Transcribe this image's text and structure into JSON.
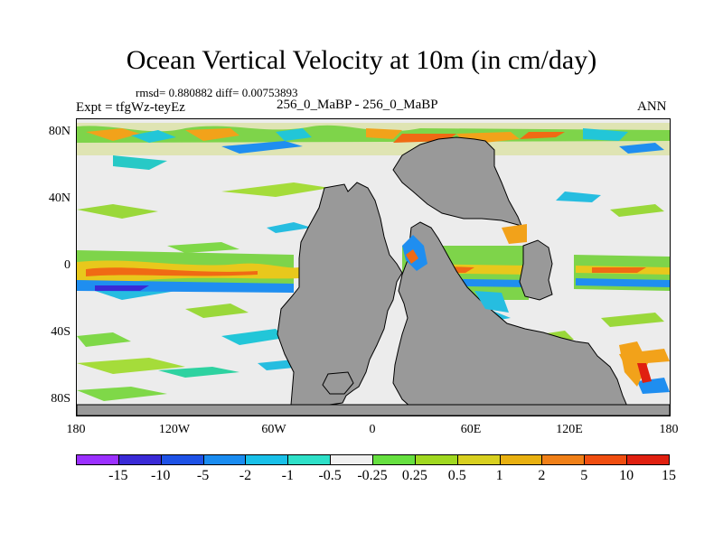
{
  "title": "Ocean Vertical Velocity at 10m (in cm/day)",
  "stats": "rmsd= 0.880882 diff= 0.00753893",
  "expt": "Expt = tfgWz-teyEz",
  "subtitle": "256_0_MaBP - 256_0_MaBP",
  "season": "ANN",
  "y_ticks": [
    "80N",
    "40N",
    "0",
    "40S",
    "80S"
  ],
  "x_ticks": [
    "180",
    "120W",
    "60W",
    "0",
    "60E",
    "120E",
    "180"
  ],
  "colorbar": {
    "colors": [
      "#9b30ff",
      "#3a2ad6",
      "#1e52e6",
      "#1a8cf0",
      "#19c0e8",
      "#2ee0c8",
      "#f0f0f0",
      "#66e040",
      "#a0d820",
      "#d8d020",
      "#e8b010",
      "#f08018",
      "#f04e10",
      "#e02010"
    ],
    "labels": [
      "-15",
      "-10",
      "-5",
      "-2",
      "-1",
      "-0.5",
      "-0.25",
      "0.25",
      "0.5",
      "1",
      "2",
      "5",
      "10",
      "15"
    ]
  }
}
